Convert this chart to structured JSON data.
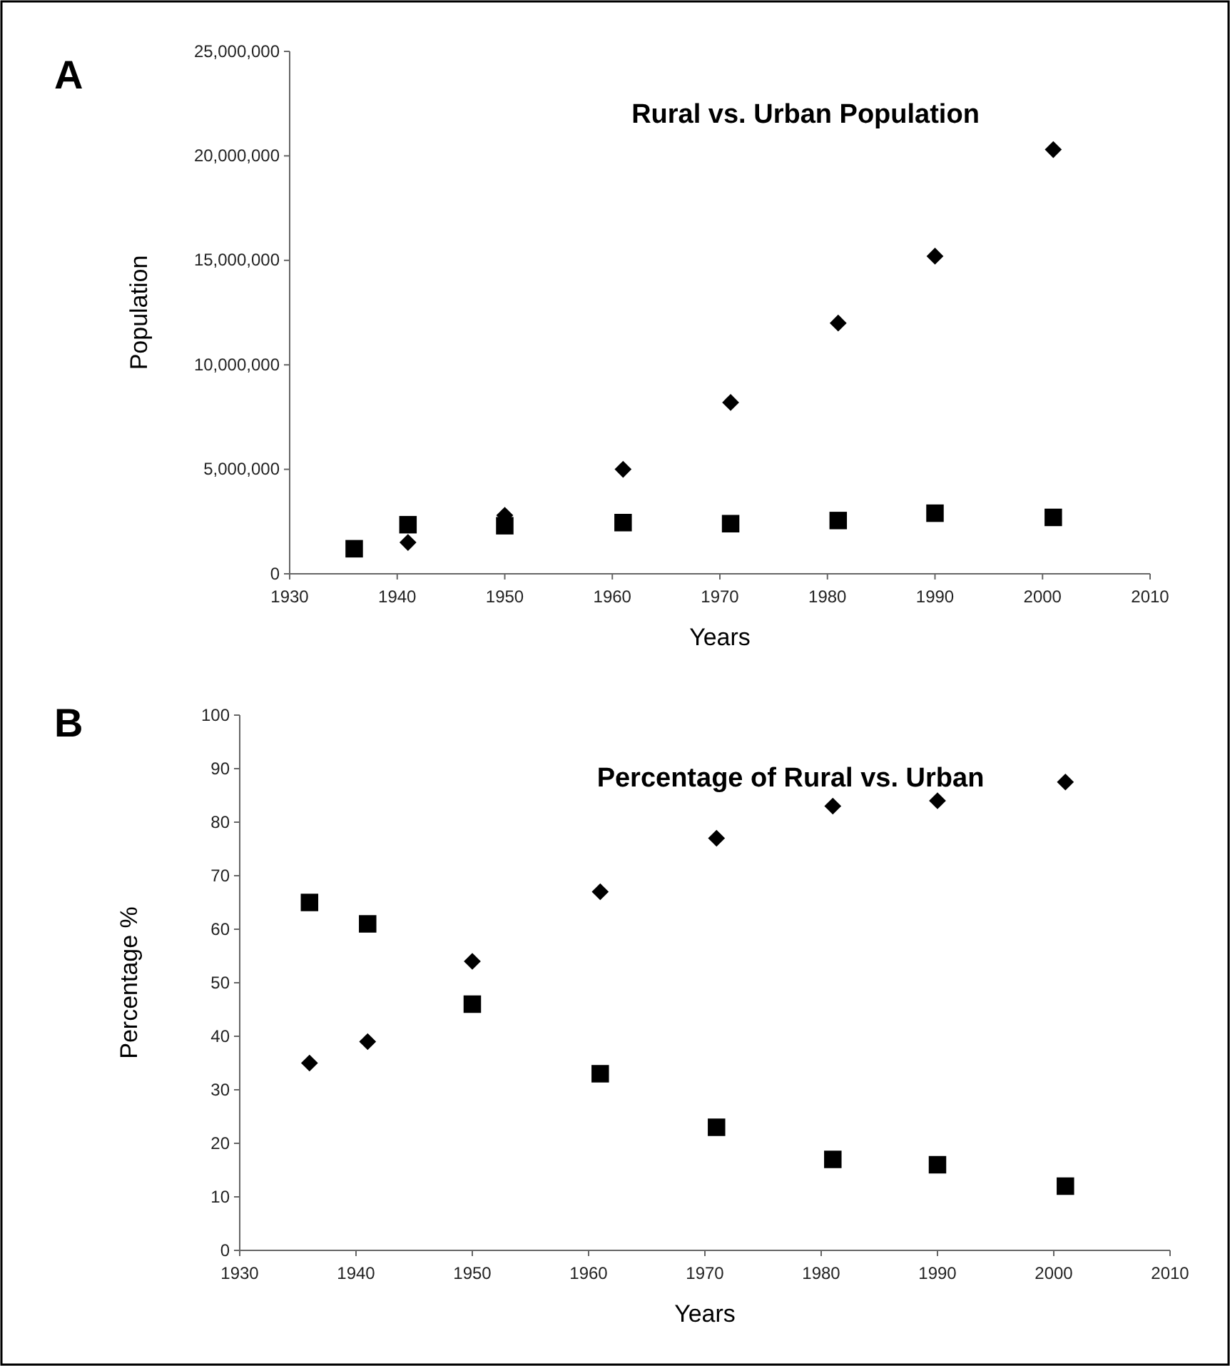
{
  "chart_data": [
    {
      "type": "scatter",
      "title": "Rural vs. Urban Population",
      "xlabel": "Years",
      "ylabel": "Population",
      "annotations": [
        "A"
      ],
      "xlim": [
        1930,
        2010
      ],
      "xticks": [
        1930,
        1940,
        1950,
        1960,
        1970,
        1980,
        1990,
        2000,
        2010
      ],
      "ylim": [
        0,
        25000000
      ],
      "yticks": [
        {
          "value": 0,
          "label": "0"
        },
        {
          "value": 5000000,
          "label": "5,000,000"
        },
        {
          "value": 10000000,
          "label": "10,000,000"
        },
        {
          "value": 15000000,
          "label": "15,000,000"
        },
        {
          "value": 20000000,
          "label": "20,000,000"
        },
        {
          "value": 25000000,
          "label": "25,000,000"
        }
      ],
      "grid": false,
      "series": [
        {
          "color": "#000000",
          "marker": "diamond",
          "x": [
            1941,
            1950,
            1961,
            1971,
            1981,
            1990,
            2001
          ],
          "values": [
            1500000,
            2800000,
            5000000,
            8200000,
            12000000,
            15200000,
            20300000
          ]
        },
        {
          "color": "#000000",
          "marker": "square",
          "x": [
            1936,
            1941,
            1950,
            1961,
            1971,
            1981,
            1990,
            2001
          ],
          "values": [
            1200000,
            2350000,
            2300000,
            2450000,
            2400000,
            2550000,
            2900000,
            2700000
          ]
        }
      ]
    },
    {
      "type": "scatter",
      "title": "Percentage of Rural vs. Urban",
      "xlabel": "Years",
      "ylabel": "Percentage %",
      "annotations": [
        "B"
      ],
      "xlim": [
        1930,
        2010
      ],
      "xticks": [
        1930,
        1940,
        1950,
        1960,
        1970,
        1980,
        1990,
        2000,
        2010
      ],
      "ylim": [
        0,
        100
      ],
      "yticks": [
        0,
        10,
        20,
        30,
        40,
        50,
        60,
        70,
        80,
        90,
        100
      ],
      "grid": false,
      "series": [
        {
          "color": "#000000",
          "marker": "diamond",
          "x": [
            1936,
            1941,
            1950,
            1961,
            1971,
            1981,
            1990,
            2001
          ],
          "values": [
            35,
            39,
            54,
            67,
            77,
            83,
            84,
            87.5
          ]
        },
        {
          "color": "#000000",
          "marker": "square",
          "x": [
            1936,
            1941,
            1950,
            1961,
            1971,
            1981,
            1990,
            2001
          ],
          "values": [
            65,
            61,
            46,
            33,
            23,
            17,
            16,
            12
          ]
        }
      ]
    }
  ]
}
